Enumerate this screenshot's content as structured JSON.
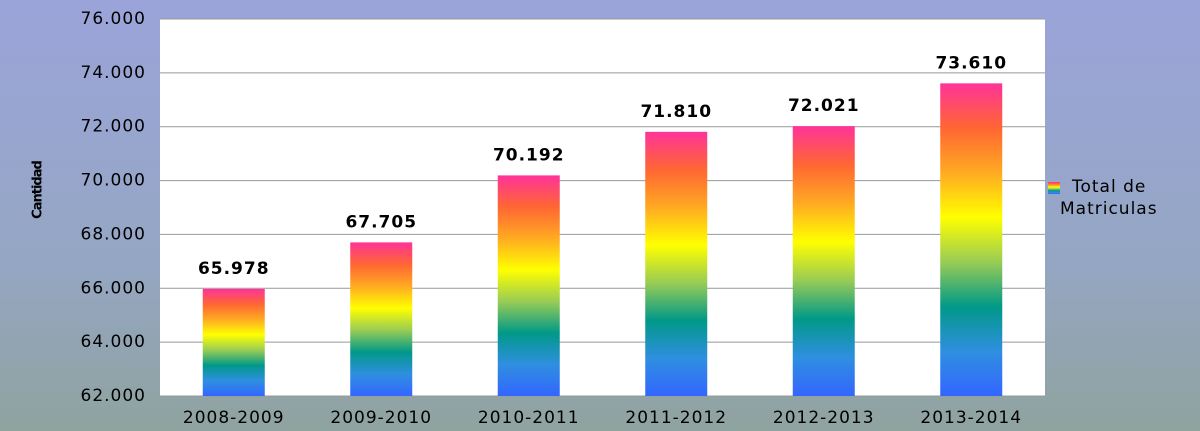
{
  "chart_data": {
    "type": "bar",
    "ylabel": "Cantidad",
    "categories": [
      "2008-2009",
      "2009-2010",
      "2010-2011",
      "2011-2012",
      "2012-2013",
      "2013-2014"
    ],
    "series": [
      {
        "name": "Total de Matriculas",
        "colors": [
          "#3366ff",
          "#2f8fe0",
          "#009988",
          "#99cc55",
          "#ffff00",
          "#ffaa22",
          "#ff6633",
          "#ff3399"
        ],
        "values": [
          65978,
          67705,
          70192,
          71810,
          72021,
          73610
        ],
        "value_labels": [
          "65.978",
          "67.705",
          "70.192",
          "71.810",
          "72.021",
          "73.610"
        ]
      }
    ],
    "ylim": [
      62000,
      76000
    ],
    "yticks": [
      {
        "value": 62000,
        "label": "62.000"
      },
      {
        "value": 64000,
        "label": "64.000"
      },
      {
        "value": 66000,
        "label": "66.000"
      },
      {
        "value": 68000,
        "label": "68.000"
      },
      {
        "value": 70000,
        "label": "70.000"
      },
      {
        "value": 72000,
        "label": "72.000"
      },
      {
        "value": 74000,
        "label": "74.000"
      },
      {
        "value": 76000,
        "label": "76.000"
      }
    ],
    "grid": true,
    "legend": "right"
  }
}
